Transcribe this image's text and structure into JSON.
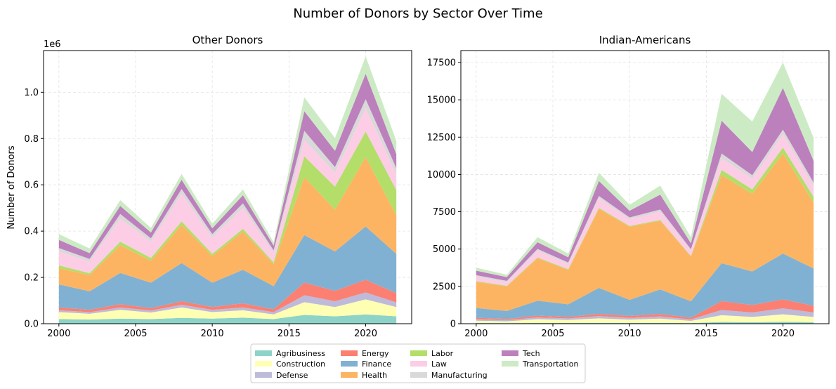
{
  "figure": {
    "title": "Number of Donors by Sector Over Time"
  },
  "chart_data": [
    {
      "type": "area",
      "stacked": true,
      "title": "Other Donors",
      "xlabel": "",
      "ylabel": "Number of Donors",
      "y_offset_label": "1e6",
      "x": [
        2000,
        2002,
        2004,
        2006,
        2008,
        2010,
        2012,
        2014,
        2016,
        2018,
        2020,
        2022
      ],
      "xlim": [
        1999,
        2023
      ],
      "ylim": [
        0,
        1180000
      ],
      "x_ticks": [
        2000,
        2005,
        2010,
        2015,
        2020
      ],
      "y_ticks": [
        0,
        200000,
        400000,
        600000,
        800000,
        1000000
      ],
      "y_tick_labels": [
        "0.0",
        "0.2",
        "0.4",
        "0.6",
        "0.8",
        "1.0"
      ],
      "grid": true,
      "series": [
        {
          "name": "Agribusiness",
          "color": "#8dd3c7",
          "values": [
            20000,
            18000,
            22000,
            20000,
            25000,
            22000,
            26000,
            20000,
            38000,
            32000,
            40000,
            32000
          ]
        },
        {
          "name": "Construction",
          "color": "#ffffb3",
          "values": [
            30000,
            25000,
            38000,
            28000,
            45000,
            28000,
            32000,
            20000,
            55000,
            40000,
            65000,
            40000
          ]
        },
        {
          "name": "Defense",
          "color": "#bebada",
          "values": [
            8000,
            7000,
            10000,
            9000,
            12000,
            10000,
            12000,
            10000,
            30000,
            25000,
            30000,
            20000
          ]
        },
        {
          "name": "Energy",
          "color": "#fb8072",
          "values": [
            12000,
            10000,
            14000,
            10000,
            15000,
            12000,
            18000,
            12000,
            55000,
            45000,
            55000,
            40000
          ]
        },
        {
          "name": "Finance",
          "color": "#80b1d3",
          "values": [
            100000,
            80000,
            135000,
            110000,
            165000,
            105000,
            145000,
            100000,
            205000,
            170000,
            230000,
            170000
          ]
        },
        {
          "name": "Health",
          "color": "#fdb462",
          "values": [
            70000,
            70000,
            120000,
            95000,
            165000,
            115000,
            165000,
            95000,
            250000,
            180000,
            300000,
            165000
          ]
        },
        {
          "name": "Labor",
          "color": "#b3de69",
          "values": [
            12000,
            8000,
            15000,
            12000,
            15000,
            10000,
            12000,
            8000,
            90000,
            100000,
            110000,
            110000
          ]
        },
        {
          "name": "Law",
          "color": "#fccde5",
          "values": [
            60000,
            50000,
            100000,
            70000,
            120000,
            70000,
            90000,
            40000,
            70000,
            60000,
            100000,
            70000
          ]
        },
        {
          "name": "Manufacturing",
          "color": "#d9d9d9",
          "values": [
            15000,
            12000,
            20000,
            15000,
            20000,
            15000,
            20000,
            12000,
            40000,
            25000,
            40000,
            25000
          ]
        },
        {
          "name": "Tech",
          "color": "#bc80bd",
          "values": [
            35000,
            25000,
            35000,
            25000,
            40000,
            25000,
            35000,
            20000,
            85000,
            70000,
            110000,
            60000
          ]
        },
        {
          "name": "Transportation",
          "color": "#ccebc5",
          "values": [
            25000,
            20000,
            25000,
            20000,
            25000,
            20000,
            25000,
            15000,
            60000,
            55000,
            75000,
            58000
          ]
        }
      ]
    },
    {
      "type": "area",
      "stacked": true,
      "title": "Indian-Americans",
      "xlabel": "",
      "ylabel": "",
      "x": [
        2000,
        2002,
        2004,
        2006,
        2008,
        2010,
        2012,
        2014,
        2016,
        2018,
        2020,
        2022
      ],
      "xlim": [
        1999,
        2023
      ],
      "ylim": [
        0,
        18300
      ],
      "x_ticks": [
        2000,
        2005,
        2010,
        2015,
        2020
      ],
      "y_ticks": [
        0,
        2500,
        5000,
        7500,
        10000,
        12500,
        15000,
        17500
      ],
      "y_tick_labels": [
        "0",
        "2500",
        "5000",
        "7500",
        "10000",
        "12500",
        "15000",
        "17500"
      ],
      "grid": true,
      "series": [
        {
          "name": "Agribusiness",
          "color": "#8dd3c7",
          "values": [
            50,
            40,
            50,
            50,
            60,
            50,
            60,
            40,
            120,
            100,
            130,
            100
          ]
        },
        {
          "name": "Construction",
          "color": "#ffffb3",
          "values": [
            150,
            120,
            250,
            200,
            300,
            220,
            280,
            150,
            450,
            350,
            500,
            350
          ]
        },
        {
          "name": "Defense",
          "color": "#bebada",
          "values": [
            100,
            80,
            120,
            100,
            150,
            120,
            150,
            100,
            350,
            300,
            400,
            300
          ]
        },
        {
          "name": "Energy",
          "color": "#fb8072",
          "values": [
            100,
            80,
            120,
            100,
            150,
            130,
            160,
            110,
            600,
            500,
            600,
            450
          ]
        },
        {
          "name": "Finance",
          "color": "#80b1d3",
          "values": [
            650,
            530,
            1000,
            850,
            1740,
            1080,
            1650,
            1100,
            2530,
            2250,
            3070,
            2500
          ]
        },
        {
          "name": "Health",
          "color": "#fdb462",
          "values": [
            1750,
            1650,
            2850,
            2300,
            5300,
            4900,
            4600,
            3000,
            5900,
            5200,
            6700,
            4400
          ]
        },
        {
          "name": "Labor",
          "color": "#b3de69",
          "values": [
            50,
            40,
            50,
            50,
            60,
            50,
            50,
            40,
            350,
            300,
            400,
            400
          ]
        },
        {
          "name": "Law",
          "color": "#fccde5",
          "values": [
            300,
            250,
            450,
            350,
            650,
            450,
            550,
            350,
            800,
            700,
            900,
            700
          ]
        },
        {
          "name": "Manufacturing",
          "color": "#d9d9d9",
          "values": [
            100,
            80,
            120,
            100,
            150,
            120,
            150,
            100,
            300,
            250,
            300,
            250
          ]
        },
        {
          "name": "Tech",
          "color": "#bc80bd",
          "values": [
            300,
            250,
            450,
            350,
            1000,
            450,
            1000,
            400,
            2200,
            1550,
            2800,
            1450
          ]
        },
        {
          "name": "Transportation",
          "color": "#ccebc5",
          "values": [
            200,
            160,
            340,
            250,
            550,
            400,
            600,
            410,
            1800,
            2050,
            1700,
            1550
          ]
        }
      ]
    }
  ]
}
